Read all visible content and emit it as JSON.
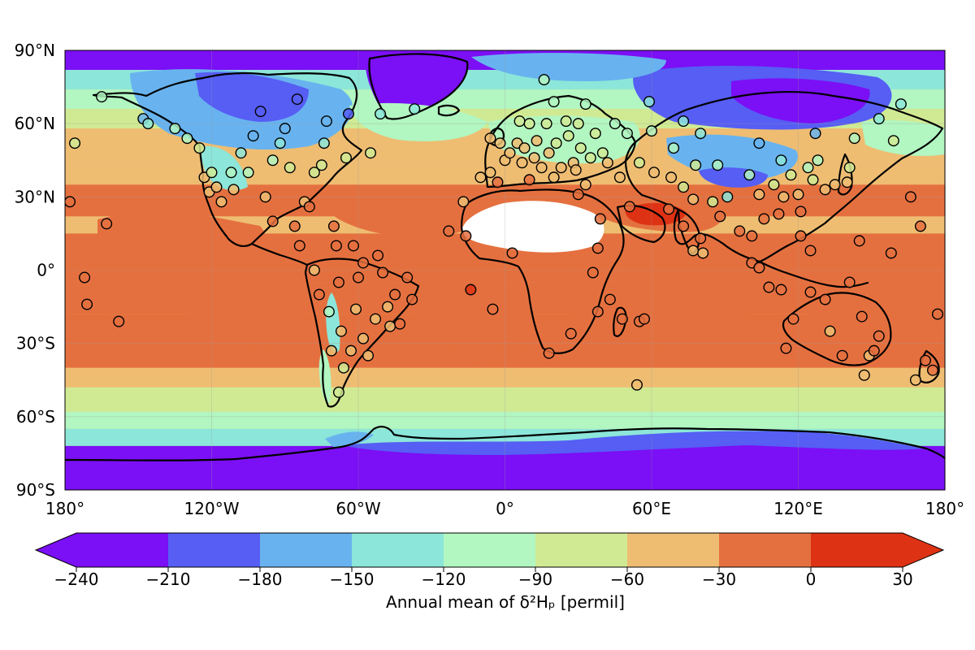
{
  "chart_data": {
    "type": "map",
    "projection": "PlateCarree",
    "extent": {
      "lon": [
        -180,
        180
      ],
      "lat": [
        -90,
        90
      ]
    },
    "xticks": [
      {
        "value": -180,
        "label": "180°"
      },
      {
        "value": -120,
        "label": "120°W"
      },
      {
        "value": -60,
        "label": "60°W"
      },
      {
        "value": 0,
        "label": "0°"
      },
      {
        "value": 60,
        "label": "60°E"
      },
      {
        "value": 120,
        "label": "120°E"
      },
      {
        "value": 180,
        "label": "180°"
      }
    ],
    "yticks": [
      {
        "value": 90,
        "label": "90°N"
      },
      {
        "value": 60,
        "label": "60°N"
      },
      {
        "value": 30,
        "label": "30°N"
      },
      {
        "value": 0,
        "label": "0°"
      },
      {
        "value": -30,
        "label": "30°S"
      },
      {
        "value": -60,
        "label": "60°S"
      },
      {
        "value": -90,
        "label": "90°S"
      }
    ],
    "grid": true,
    "colorbar": {
      "orientation": "horizontal",
      "extend": "both",
      "boundaries": [
        -240,
        -210,
        -180,
        -150,
        -120,
        -90,
        -60,
        -30,
        0,
        30
      ],
      "tick_labels": [
        "−240",
        "−210",
        "−180",
        "−150",
        "−120",
        "−90",
        "−60",
        "−30",
        "0",
        "30"
      ],
      "colors": [
        "#7b0ff5",
        "#565ef4",
        "#68b3ef",
        "#8ce6d9",
        "#b2f6c1",
        "#d0ea94",
        "#eebd72",
        "#e5703f",
        "#de3214"
      ],
      "under_color": "#7b0ff5",
      "over_color": "#de3214",
      "label": "Annual mean of δ²Hₚ [permil]"
    },
    "no_data_color": "#ffffff",
    "station_marker": {
      "shape": "circle",
      "edge_color": "#000000"
    },
    "stations": [
      [
        -178,
        28,
        -30
      ],
      [
        -176,
        52,
        -90
      ],
      [
        -172,
        -3,
        -30
      ],
      [
        -171,
        -14,
        -30
      ],
      [
        -163,
        19,
        -30
      ],
      [
        -165,
        71,
        -120
      ],
      [
        -158,
        -21,
        -30
      ],
      [
        -148,
        62,
        -180
      ],
      [
        -146,
        60,
        -150
      ],
      [
        -135,
        58,
        -120
      ],
      [
        -130,
        54,
        -120
      ],
      [
        -125,
        50,
        -90
      ],
      [
        -123,
        38,
        -60
      ],
      [
        -121,
        32,
        -60
      ],
      [
        -120,
        40,
        -90
      ],
      [
        -118,
        34,
        -60
      ],
      [
        -116,
        28,
        -60
      ],
      [
        -112,
        40,
        -120
      ],
      [
        -111,
        33,
        -60
      ],
      [
        -108,
        48,
        -150
      ],
      [
        -105,
        40,
        -120
      ],
      [
        -103,
        55,
        -180
      ],
      [
        -100,
        65,
        -210
      ],
      [
        -98,
        30,
        -60
      ],
      [
        -95,
        20,
        -30
      ],
      [
        -95,
        45,
        -120
      ],
      [
        -92,
        52,
        -150
      ],
      [
        -90,
        58,
        -180
      ],
      [
        -88,
        42,
        -90
      ],
      [
        -86,
        18,
        -30
      ],
      [
        -85,
        70,
        -210
      ],
      [
        -84,
        10,
        -30
      ],
      [
        -82,
        28,
        -60
      ],
      [
        -80,
        26,
        -30
      ],
      [
        -78,
        40,
        -90
      ],
      [
        -78,
        0,
        -60
      ],
      [
        -76,
        -10,
        -30
      ],
      [
        -75,
        43,
        -90
      ],
      [
        -74,
        52,
        -150
      ],
      [
        -73,
        61,
        -180
      ],
      [
        -72,
        -17,
        -120
      ],
      [
        -71,
        -33,
        -60
      ],
      [
        -70,
        18,
        -30
      ],
      [
        -69,
        10,
        -30
      ],
      [
        -68,
        -5,
        -30
      ],
      [
        -68,
        -50,
        -90
      ],
      [
        -67,
        -25,
        -60
      ],
      [
        -66,
        -40,
        -90
      ],
      [
        -65,
        46,
        -90
      ],
      [
        -64,
        64,
        -210
      ],
      [
        -63,
        -33,
        -60
      ],
      [
        -62,
        10,
        -30
      ],
      [
        -61,
        -16,
        -60
      ],
      [
        -60,
        -3,
        -30
      ],
      [
        -58,
        3,
        -30
      ],
      [
        -58,
        -28,
        -60
      ],
      [
        -56,
        -35,
        -60
      ],
      [
        -55,
        48,
        -90
      ],
      [
        -53,
        -20,
        -60
      ],
      [
        -52,
        6,
        -30
      ],
      [
        -51,
        64,
        -150
      ],
      [
        -50,
        -1,
        -30
      ],
      [
        -48,
        -15,
        -60
      ],
      [
        -47,
        -23,
        -60
      ],
      [
        -45,
        -10,
        -30
      ],
      [
        -43,
        -22,
        -30
      ],
      [
        -40,
        -3,
        -30
      ],
      [
        -38,
        -12,
        -30
      ],
      [
        -37,
        66,
        -150
      ],
      [
        -23,
        16,
        -30
      ],
      [
        -17,
        28,
        -60
      ],
      [
        -16,
        14,
        -30
      ],
      [
        -14,
        -8,
        0
      ],
      [
        -10,
        38,
        -60
      ],
      [
        -6,
        54,
        -60
      ],
      [
        -6,
        40,
        -60
      ],
      [
        -5,
        -16,
        -30
      ],
      [
        -3,
        36,
        -30
      ],
      [
        -2,
        52,
        -60
      ],
      [
        0,
        45,
        -60
      ],
      [
        2,
        48,
        -60
      ],
      [
        3,
        7,
        -30
      ],
      [
        5,
        52,
        -60
      ],
      [
        6,
        61,
        -90
      ],
      [
        7,
        44,
        -60
      ],
      [
        8,
        50,
        -60
      ],
      [
        10,
        37,
        -30
      ],
      [
        10,
        60,
        -90
      ],
      [
        12,
        46,
        -60
      ],
      [
        13,
        53,
        -60
      ],
      [
        15,
        42,
        -60
      ],
      [
        16,
        78,
        -120
      ],
      [
        17,
        60,
        -90
      ],
      [
        18,
        -34,
        -30
      ],
      [
        18,
        48,
        -60
      ],
      [
        20,
        69,
        -120
      ],
      [
        20,
        38,
        -60
      ],
      [
        21,
        52,
        -90
      ],
      [
        23,
        42,
        -60
      ],
      [
        25,
        61,
        -90
      ],
      [
        26,
        55,
        -90
      ],
      [
        27,
        -26,
        -30
      ],
      [
        28,
        44,
        -60
      ],
      [
        29,
        41,
        -60
      ],
      [
        30,
        31,
        -30
      ],
      [
        30,
        60,
        -90
      ],
      [
        31,
        50,
        -90
      ],
      [
        33,
        68,
        -120
      ],
      [
        33,
        35,
        -60
      ],
      [
        35,
        46,
        -90
      ],
      [
        36,
        -1,
        -30
      ],
      [
        37,
        56,
        -90
      ],
      [
        38,
        -17,
        -30
      ],
      [
        38,
        9,
        -30
      ],
      [
        39,
        21,
        -30
      ],
      [
        40,
        48,
        -90
      ],
      [
        42,
        44,
        -60
      ],
      [
        43,
        -12,
        -30
      ],
      [
        45,
        60,
        -120
      ],
      [
        47,
        38,
        -60
      ],
      [
        48,
        -20,
        -30
      ],
      [
        50,
        56,
        -120
      ],
      [
        51,
        26,
        -30
      ],
      [
        54,
        -47,
        -60
      ],
      [
        55,
        -21,
        -30
      ],
      [
        55,
        44,
        -90
      ],
      [
        57,
        -20,
        -30
      ],
      [
        59,
        69,
        -150
      ],
      [
        60,
        57,
        -120
      ],
      [
        61,
        40,
        -60
      ],
      [
        67,
        25,
        -30
      ],
      [
        68,
        38,
        -60
      ],
      [
        69,
        50,
        -120
      ],
      [
        73,
        34,
        -90
      ],
      [
        73,
        61,
        -150
      ],
      [
        73,
        18,
        -30
      ],
      [
        77,
        29,
        -60
      ],
      [
        77,
        8,
        -60
      ],
      [
        78,
        43,
        -90
      ],
      [
        80,
        56,
        -150
      ],
      [
        80,
        13,
        -30
      ],
      [
        81,
        7,
        -60
      ],
      [
        85,
        28,
        -90
      ],
      [
        87,
        43,
        -120
      ],
      [
        88,
        22,
        -30
      ],
      [
        91,
        30,
        -150
      ],
      [
        96,
        16,
        -30
      ],
      [
        100,
        39,
        -120
      ],
      [
        101,
        14,
        -30
      ],
      [
        101,
        3,
        -30
      ],
      [
        104,
        52,
        -180
      ],
      [
        104,
        31,
        -60
      ],
      [
        104,
        1,
        -30
      ],
      [
        106,
        21,
        -30
      ],
      [
        108,
        -7,
        -30
      ],
      [
        110,
        35,
        -90
      ],
      [
        112,
        23,
        -30
      ],
      [
        113,
        45,
        -150
      ],
      [
        113,
        -8,
        -30
      ],
      [
        114,
        30,
        -60
      ],
      [
        115,
        -32,
        -30
      ],
      [
        117,
        39,
        -90
      ],
      [
        118,
        -20,
        -30
      ],
      [
        120,
        31,
        -60
      ],
      [
        121,
        24,
        -30
      ],
      [
        121,
        14,
        -30
      ],
      [
        124,
        42,
        -120
      ],
      [
        125,
        8,
        -30
      ],
      [
        125,
        -9,
        -30
      ],
      [
        126,
        37,
        -90
      ],
      [
        127,
        56,
        -180
      ],
      [
        128,
        45,
        -120
      ],
      [
        131,
        -12,
        -30
      ],
      [
        131,
        33,
        -60
      ],
      [
        133,
        -25,
        -60
      ],
      [
        135,
        35,
        -60
      ],
      [
        138,
        -35,
        -30
      ],
      [
        140,
        36,
        -60
      ],
      [
        141,
        42,
        -90
      ],
      [
        141,
        -5,
        -30
      ],
      [
        143,
        54,
        -120
      ],
      [
        145,
        12,
        -30
      ],
      [
        146,
        -19,
        -30
      ],
      [
        147,
        -43,
        -60
      ],
      [
        149,
        -35,
        -60
      ],
      [
        151,
        -33,
        -30
      ],
      [
        153,
        62,
        -150
      ],
      [
        153,
        -27,
        -30
      ],
      [
        158,
        7,
        -30
      ],
      [
        159,
        53,
        -90
      ],
      [
        162,
        68,
        -150
      ],
      [
        166,
        30,
        -30
      ],
      [
        168,
        -45,
        -60
      ],
      [
        170,
        18,
        -30
      ],
      [
        172,
        -37,
        -30
      ],
      [
        175,
        -41,
        -30
      ],
      [
        177,
        -18,
        -30
      ]
    ]
  }
}
